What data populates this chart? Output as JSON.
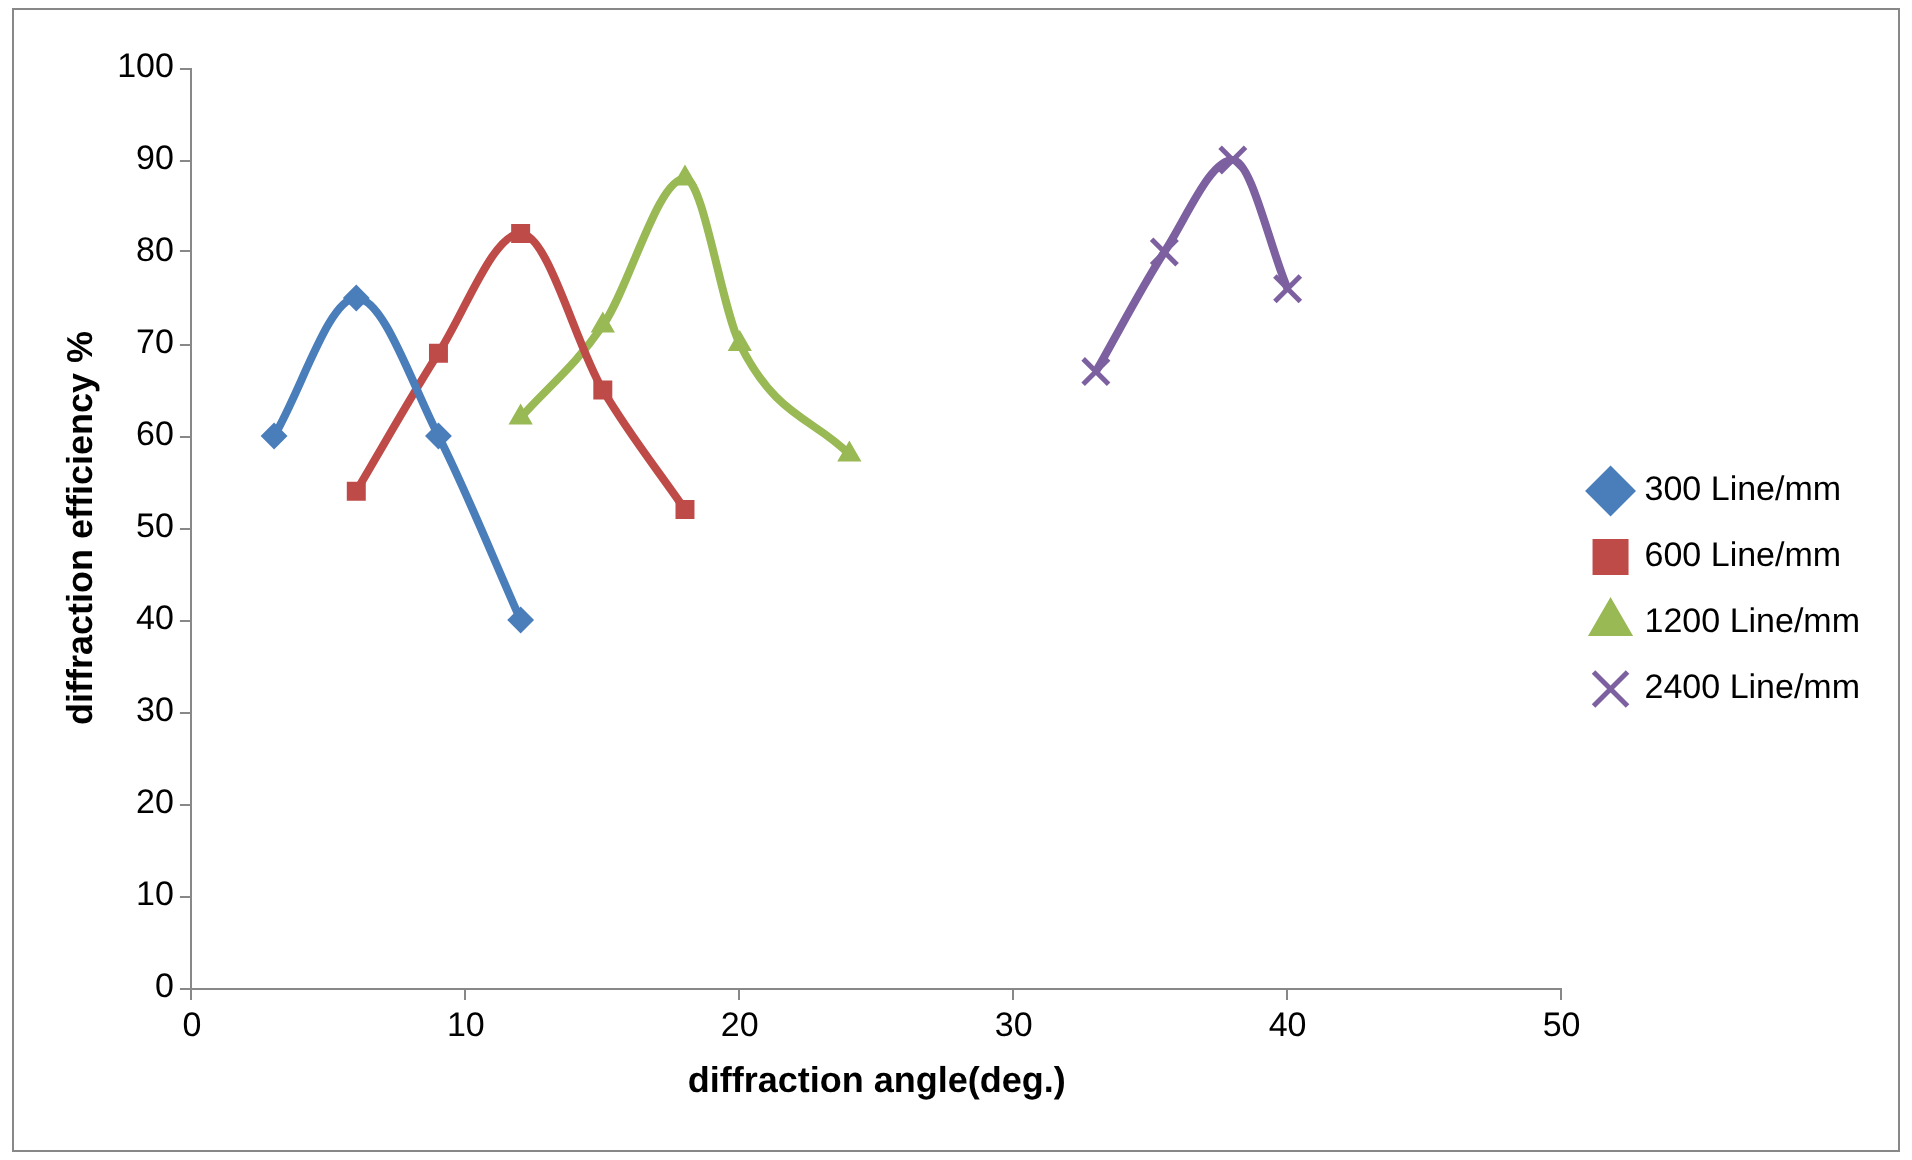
{
  "chart_data": {
    "type": "line",
    "xlabel": "diffraction angle(deg.)",
    "ylabel": "diffraction efficiency %",
    "series": [
      {
        "name": "300 Line/mm",
        "color": "#4a7ebb",
        "marker": "diamond",
        "x": [
          3,
          6,
          9,
          12
        ],
        "values": [
          60,
          75,
          60,
          40
        ]
      },
      {
        "name": "600 Line/mm",
        "color": "#be4b48",
        "marker": "square",
        "x": [
          6,
          9,
          12,
          15,
          18
        ],
        "values": [
          54,
          69,
          82,
          65,
          52
        ]
      },
      {
        "name": "1200 Line/mm",
        "color": "#98b954",
        "marker": "triangle",
        "x": [
          12,
          15,
          18,
          20,
          24
        ],
        "values": [
          62,
          72,
          88,
          70,
          58
        ]
      },
      {
        "name": "2400 Line/mm",
        "color": "#7d60a0",
        "marker": "cross",
        "x": [
          33,
          35.5,
          38,
          40
        ],
        "values": [
          67,
          80,
          90,
          76
        ]
      }
    ],
    "xlim": [
      0,
      50
    ],
    "xticks": [
      0,
      10,
      20,
      30,
      40,
      50
    ],
    "ylim": [
      0,
      100
    ],
    "yticks": [
      0,
      10,
      20,
      30,
      40,
      50,
      60,
      70,
      80,
      90,
      100
    ],
    "grid": false,
    "legend": "right",
    "line_style": "solid"
  }
}
